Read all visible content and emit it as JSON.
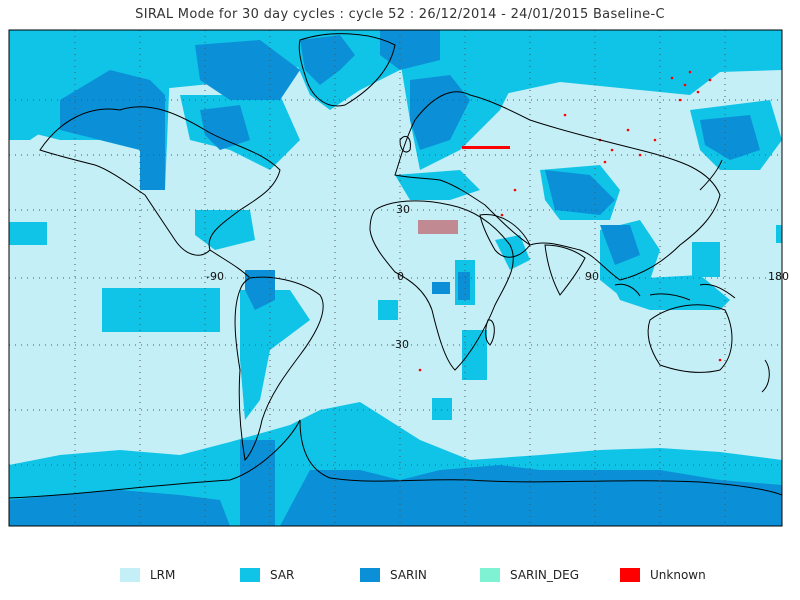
{
  "title": "SIRAL Mode for 30 day cycles : cycle 52 : 26/12/2014 - 24/01/2015 Baseline-C",
  "map": {
    "lon_labels": [
      "-90",
      "0",
      "90",
      "180"
    ],
    "lat_labels": [
      "30",
      "-30"
    ]
  },
  "legend": [
    {
      "label": "LRM",
      "color": "#c4eff6"
    },
    {
      "label": "SAR",
      "color": "#10c4e8"
    },
    {
      "label": "SARIN",
      "color": "#0b8fd6"
    },
    {
      "label": "SARIN_DEG",
      "color": "#7ef2d2"
    },
    {
      "label": "Unknown",
      "color": "#ff0000"
    }
  ]
}
